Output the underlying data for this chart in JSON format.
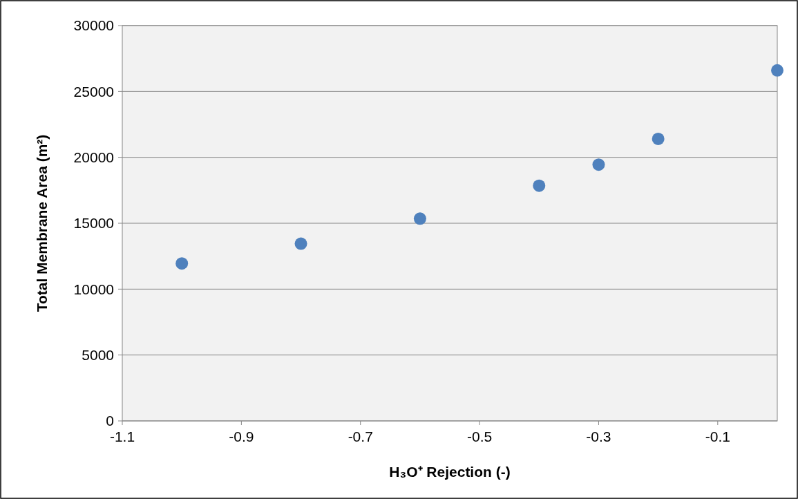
{
  "chart_data": {
    "type": "scatter",
    "xlabel": "H₃O⁺ Rejection (-)",
    "ylabel": "Total Membrane Area (m²)",
    "x": [
      -1.0,
      -0.8,
      -0.6,
      -0.4,
      -0.3,
      -0.2,
      0.0
    ],
    "series": [
      {
        "color": "#4f81bd",
        "values": [
          11950,
          13450,
          15350,
          17850,
          19450,
          21400,
          26600
        ]
      }
    ],
    "xlim": [
      -1.1,
      0
    ],
    "xticks": [
      -1.1,
      -0.9,
      -0.7,
      -0.5,
      -0.3,
      -0.1
    ],
    "ylim": [
      0,
      30000
    ],
    "yticks": [
      0,
      5000,
      10000,
      15000,
      20000,
      25000,
      30000
    ],
    "grid": "y",
    "marker": "circle"
  }
}
